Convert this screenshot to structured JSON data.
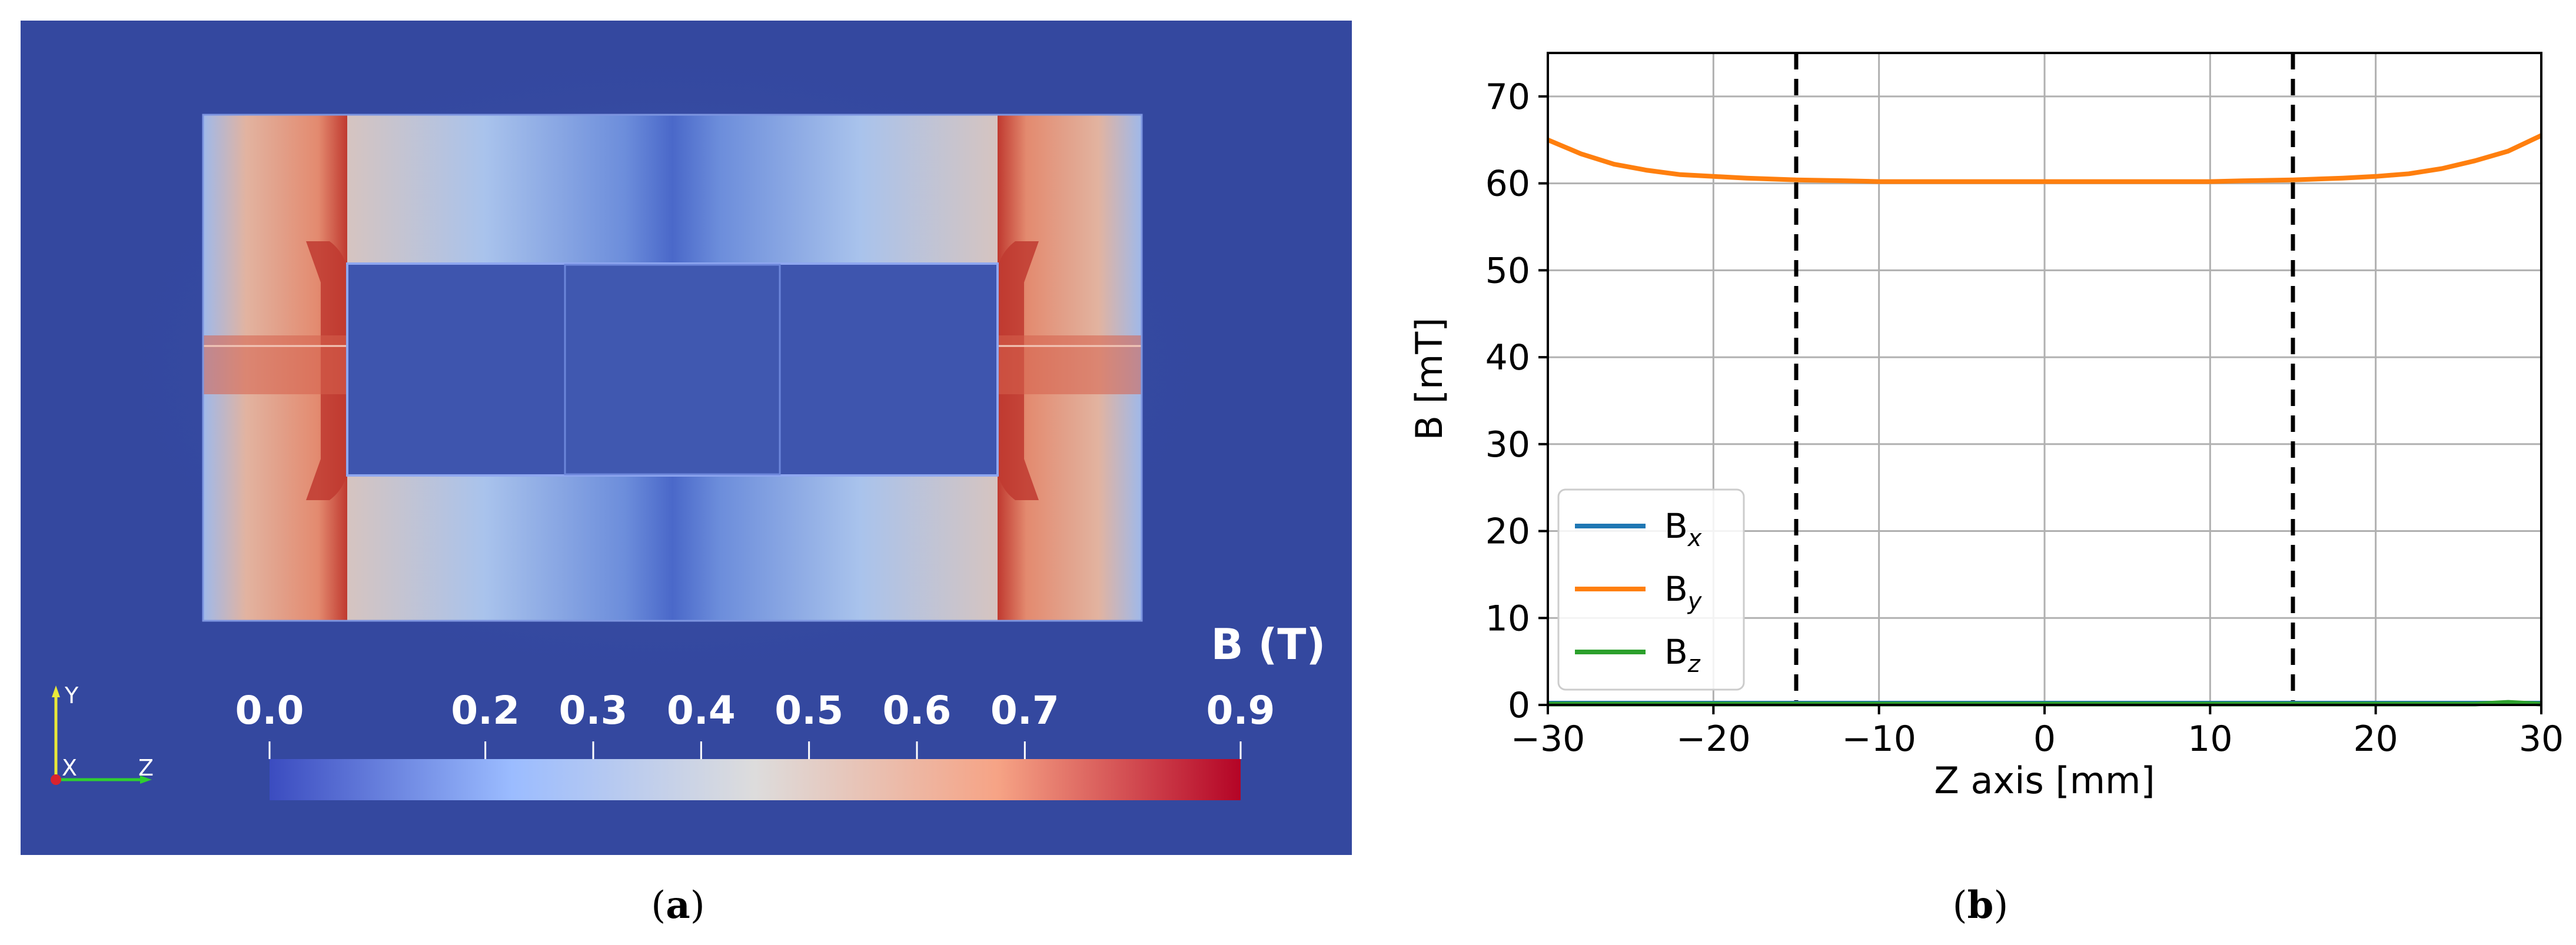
{
  "chart_data": [
    {
      "type": "heatmap",
      "title": "",
      "colorbar": {
        "title": "B (T)",
        "ticks": [
          "0.0",
          "0.2",
          "0.3",
          "0.4",
          "0.5",
          "0.6",
          "0.7",
          "0.9"
        ],
        "tick_values": [
          0.0,
          0.2,
          0.3,
          0.4,
          0.5,
          0.6,
          0.7,
          0.9
        ],
        "range": [
          0.0,
          0.9
        ],
        "colors": [
          "#3b4cc0",
          "#9bbcff",
          "#dddcdc",
          "#f6a385",
          "#b40426"
        ]
      },
      "orientation_axes": {
        "y": "Y",
        "x": "X",
        "z": "Z"
      },
      "caption": "(a)"
    },
    {
      "type": "line",
      "xlabel": "Z axis [mm]",
      "ylabel": "B [mT]",
      "xlim": [
        -30,
        30
      ],
      "ylim": [
        0,
        75
      ],
      "xticks": [
        -30,
        -20,
        -10,
        0,
        10,
        20,
        30
      ],
      "xtick_labels": [
        "−30",
        "−20",
        "−10",
        "0",
        "10",
        "20",
        "30"
      ],
      "yticks": [
        0,
        10,
        20,
        30,
        40,
        50,
        60,
        70
      ],
      "ytick_labels": [
        "0",
        "10",
        "20",
        "30",
        "40",
        "50",
        "60",
        "70"
      ],
      "grid": true,
      "vlines": [
        -15,
        15
      ],
      "legend_position": "lower-left",
      "x": [
        -30,
        -28,
        -26,
        -24,
        -22,
        -20,
        -18,
        -15,
        -12,
        -10,
        -5,
        0,
        5,
        10,
        12,
        15,
        18,
        20,
        22,
        24,
        26,
        28,
        30
      ],
      "series": [
        {
          "name": "B",
          "subscript": "x",
          "color": "#1f77b4",
          "values": [
            0.2,
            0.2,
            0.2,
            0.2,
            0.2,
            0.2,
            0.2,
            0.2,
            0.2,
            0.2,
            0.2,
            0.2,
            0.2,
            0.2,
            0.2,
            0.2,
            0.2,
            0.2,
            0.2,
            0.2,
            0.2,
            0.2,
            0.2
          ]
        },
        {
          "name": "B",
          "subscript": "y",
          "color": "#ff7f0e",
          "values": [
            65.0,
            63.4,
            62.2,
            61.5,
            61.0,
            60.8,
            60.6,
            60.4,
            60.3,
            60.2,
            60.2,
            60.2,
            60.2,
            60.2,
            60.3,
            60.4,
            60.6,
            60.8,
            61.1,
            61.7,
            62.6,
            63.7,
            65.5
          ]
        },
        {
          "name": "B",
          "subscript": "z",
          "color": "#2ca02c",
          "values": [
            0.1,
            0.1,
            0.1,
            0.1,
            0.1,
            0.1,
            0.1,
            0.1,
            0.1,
            0.1,
            0.1,
            0.1,
            0.1,
            0.1,
            0.1,
            0.1,
            0.1,
            0.1,
            0.1,
            0.1,
            0.1,
            0.3,
            0.1
          ]
        }
      ],
      "caption": "(b)"
    }
  ]
}
